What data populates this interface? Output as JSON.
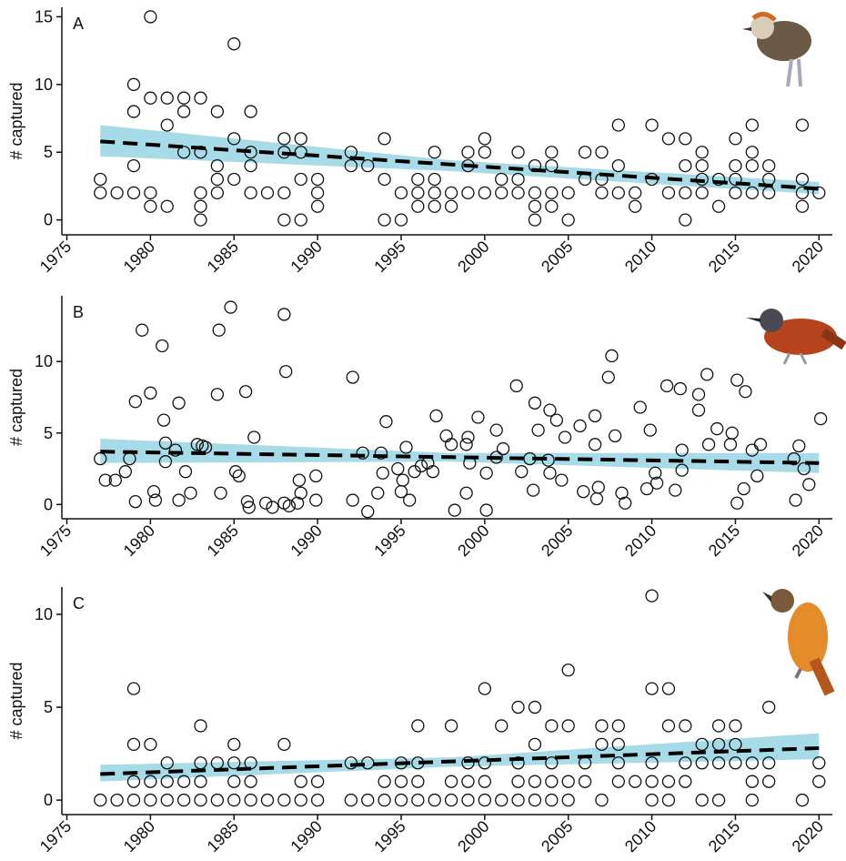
{
  "chart_data": [
    {
      "type": "scatter",
      "label": "A",
      "y_label": "# captured",
      "xlim": [
        1974.7,
        2020.8
      ],
      "ylim": [
        -1.1,
        15.7
      ],
      "xticks": [
        1975,
        1980,
        1985,
        1990,
        1995,
        2000,
        2005,
        2010,
        2015,
        2020
      ],
      "yticks": [
        0,
        5,
        10,
        15
      ],
      "x": [
        1977,
        1977,
        1978,
        1979,
        1979,
        1979,
        1979,
        1980,
        1980,
        1980,
        1980,
        1981,
        1981,
        1981,
        1982,
        1982,
        1982,
        1983,
        1983,
        1983,
        1983,
        1983,
        1984,
        1984,
        1984,
        1984,
        1985,
        1985,
        1985,
        1986,
        1986,
        1986,
        1986,
        1987,
        1988,
        1988,
        1988,
        1988,
        1989,
        1989,
        1989,
        1989,
        1990,
        1990,
        1990,
        1992,
        1992,
        1993,
        1994,
        1994,
        1994,
        1995,
        1995,
        1996,
        1996,
        1996,
        1997,
        1997,
        1997,
        1997,
        1998,
        1998,
        1999,
        1999,
        1999,
        2000,
        2000,
        2000,
        2001,
        2001,
        2002,
        2002,
        2002,
        2003,
        2003,
        2003,
        2003,
        2004,
        2004,
        2004,
        2004,
        2005,
        2005,
        2006,
        2006,
        2007,
        2007,
        2007,
        2008,
        2008,
        2008,
        2009,
        2009,
        2010,
        2010,
        2011,
        2011,
        2012,
        2012,
        2012,
        2012,
        2013,
        2013,
        2013,
        2013,
        2014,
        2014,
        2015,
        2015,
        2015,
        2015,
        2016,
        2016,
        2016,
        2016,
        2017,
        2017,
        2017,
        2019,
        2019,
        2019,
        2019,
        2020
      ],
      "y": [
        3,
        2,
        2,
        10,
        8,
        4,
        2,
        15,
        9,
        2,
        1,
        9,
        7,
        1,
        9,
        8,
        5,
        9,
        5,
        2,
        1,
        0,
        8,
        4,
        3,
        2,
        13,
        6,
        3,
        8,
        5,
        4,
        2,
        2,
        6,
        5,
        2,
        0,
        6,
        5,
        3,
        0,
        3,
        2,
        1,
        5,
        4,
        4,
        6,
        3,
        0,
        2,
        0,
        3,
        2,
        1,
        5,
        3,
        2,
        1,
        2,
        1,
        5,
        4,
        2,
        6,
        5,
        2,
        3,
        2,
        5,
        3,
        2,
        4,
        2,
        1,
        0,
        5,
        4,
        2,
        1,
        2,
        0,
        5,
        3,
        5,
        3,
        2,
        7,
        4,
        2,
        2,
        1,
        7,
        3,
        6,
        2,
        6,
        4,
        2,
        0,
        5,
        4,
        3,
        2,
        3,
        1,
        6,
        4,
        3,
        2,
        7,
        5,
        4,
        2,
        4,
        3,
        2,
        7,
        3,
        2,
        1,
        2
      ],
      "trend_x": [
        1977,
        1998,
        2020
      ],
      "trend_y": [
        5.8,
        4.09,
        2.3
      ],
      "band_lower": [
        4.7,
        3.6,
        1.9
      ],
      "band_upper": [
        7.0,
        4.4,
        2.8
      ],
      "band_color": "#a6dbe7",
      "line_color": "#000000"
    },
    {
      "type": "scatter",
      "label": "B",
      "y_label": "# captured",
      "xlim": [
        1974.7,
        2020.8
      ],
      "ylim": [
        -1.0,
        14.6
      ],
      "xticks": [
        1975,
        1980,
        1985,
        1990,
        1995,
        2000,
        2005,
        2010,
        2015,
        2020
      ],
      "yticks": [
        0,
        5,
        10
      ],
      "x": [
        1977.0,
        1977.3,
        1977.9,
        1978.5,
        1978.75,
        1979.1,
        1979.1,
        1979.5,
        1980.0,
        1980.2,
        1980.3,
        1980.7,
        1980.8,
        1980.9,
        1980.9,
        1981.5,
        1981.7,
        1981.7,
        1982.1,
        1982.4,
        1982.8,
        1983.1,
        1983.3,
        1984.0,
        1984.1,
        1984.2,
        1984.8,
        1985.1,
        1985.3,
        1985.7,
        1985.8,
        1985.9,
        1986.2,
        1986.9,
        1987.3,
        1988.0,
        1988.1,
        1988.0,
        1988.3,
        1988.8,
        1988.9,
        1989.0,
        1989.9,
        1989.9,
        1992.1,
        1992.1,
        1992.7,
        1993.0,
        1993.6,
        1993.8,
        1993.9,
        1994.1,
        1994.8,
        1995.0,
        1995.1,
        1995.3,
        1995.5,
        1995.8,
        1996.2,
        1996.6,
        1996.9,
        1997.1,
        1997.7,
        1998.0,
        1998.2,
        1998.9,
        1998.9,
        1999.0,
        1999.1,
        1999.6,
        2000.1,
        2000.1,
        2000.7,
        2000.7,
        2001.1,
        2001.9,
        2002.2,
        2002.7,
        2002.9,
        2003.0,
        2003.2,
        2003.9,
        2003.8,
        2003.9,
        2004.3,
        2004.6,
        2004.8,
        2005.7,
        2005.9,
        2006.6,
        2006.6,
        2006.7,
        2006.8,
        2007.4,
        2007.6,
        2007.8,
        2008.2,
        2008.4,
        2009.3,
        2009.7,
        2009.9,
        2010.2,
        2010.3,
        2010.9,
        2011.4,
        2011.7,
        2011.8,
        2011.8,
        2012.8,
        2012.8,
        2013.3,
        2013.4,
        2013.9,
        2014.7,
        2014.8,
        2015.1,
        2015.1,
        2015.5,
        2015.6,
        2016.0,
        2016.3,
        2016.5,
        2018.5,
        2018.6,
        2018.8,
        2019.1,
        2019.4,
        2020.1
      ],
      "y": [
        3.2,
        1.7,
        1.7,
        2.3,
        3.2,
        0.2,
        7.2,
        12.2,
        7.8,
        0.9,
        0.3,
        11.1,
        5.9,
        4.3,
        3.0,
        3.8,
        0.3,
        7.1,
        2.3,
        0.8,
        4.2,
        4.1,
        4.0,
        7.7,
        12.2,
        0.8,
        13.8,
        2.3,
        2.0,
        7.9,
        0.2,
        -0.2,
        4.7,
        0.1,
        -0.2,
        13.3,
        9.3,
        0.1,
        -0.1,
        0.1,
        1.7,
        0.8,
        0.3,
        2.0,
        8.9,
        0.3,
        3.6,
        -0.5,
        0.8,
        3.6,
        2.2,
        5.8,
        2.5,
        0.9,
        1.7,
        4.0,
        0.3,
        2.3,
        2.7,
        2.9,
        2.3,
        6.2,
        4.8,
        4.2,
        -0.4,
        4.2,
        0.8,
        4.7,
        2.9,
        6.1,
        2.2,
        -0.4,
        3.3,
        5.2,
        3.9,
        8.3,
        2.3,
        3.2,
        1.0,
        7.1,
        5.2,
        6.6,
        3.1,
        2.2,
        5.9,
        1.7,
        4.7,
        5.5,
        0.9,
        4.2,
        6.2,
        0.4,
        1.2,
        8.9,
        10.4,
        4.8,
        0.8,
        0.1,
        6.8,
        1.1,
        5.2,
        2.2,
        1.5,
        8.3,
        1.0,
        8.1,
        2.4,
        3.8,
        7.7,
        6.6,
        9.1,
        4.2,
        5.3,
        4.2,
        5.0,
        8.7,
        0.1,
        1.1,
        7.9,
        3.8,
        2.0,
        4.2,
        3.2,
        0.3,
        4.1,
        2.5,
        1.4,
        6.0
      ],
      "trend_x": [
        1977,
        1998,
        2020
      ],
      "trend_y": [
        3.7,
        3.31,
        2.9
      ],
      "band_lower": [
        2.9,
        3.0,
        2.2
      ],
      "band_upper": [
        4.6,
        3.6,
        3.6
      ],
      "band_color": "#a6dbe7",
      "line_color": "#000000"
    },
    {
      "type": "scatter",
      "label": "C",
      "y_label": "# captured",
      "xlim": [
        1974.7,
        2020.8
      ],
      "ylim": [
        -0.78,
        11.47
      ],
      "xticks": [
        1975,
        1980,
        1985,
        1990,
        1995,
        2000,
        2005,
        2010,
        2015,
        2020
      ],
      "yticks": [
        0,
        5,
        10
      ],
      "x": [
        1977,
        1978,
        1979,
        1979,
        1979,
        1979,
        1980,
        1980,
        1980,
        1981,
        1981,
        1981,
        1982,
        1982,
        1983,
        1983,
        1983,
        1983,
        1984,
        1984,
        1985,
        1985,
        1985,
        1985,
        1986,
        1986,
        1986,
        1987,
        1988,
        1988,
        1989,
        1989,
        1990,
        1990,
        1992,
        1992,
        1993,
        1993,
        1994,
        1994,
        1995,
        1995,
        1995,
        1996,
        1996,
        1996,
        1996,
        1997,
        1998,
        1998,
        1998,
        1999,
        1999,
        1999,
        2000,
        2000,
        2000,
        2000,
        2001,
        2001,
        2002,
        2002,
        2002,
        2002,
        2003,
        2003,
        2003,
        2003,
        2004,
        2004,
        2004,
        2004,
        2005,
        2005,
        2005,
        2005,
        2006,
        2006,
        2007,
        2007,
        2007,
        2008,
        2008,
        2008,
        2008,
        2009,
        2010,
        2010,
        2010,
        2010,
        2010,
        2011,
        2011,
        2011,
        2011,
        2012,
        2012,
        2012,
        2013,
        2013,
        2013,
        2014,
        2014,
        2014,
        2014,
        2015,
        2015,
        2015,
        2016,
        2016,
        2016,
        2017,
        2017,
        2017,
        2019,
        2020,
        2020
      ],
      "y": [
        0,
        0,
        6,
        3,
        1,
        0,
        3,
        1,
        0,
        2,
        1,
        0,
        1,
        0,
        4,
        2,
        1,
        0,
        2,
        0,
        3,
        2,
        1,
        0,
        2,
        1,
        0,
        0,
        3,
        0,
        1,
        0,
        1,
        0,
        2,
        0,
        2,
        0,
        1,
        0,
        2,
        1,
        0,
        4,
        2,
        1,
        0,
        0,
        4,
        1,
        0,
        2,
        1,
        0,
        6,
        2,
        1,
        0,
        4,
        0,
        5,
        2,
        1,
        0,
        5,
        3,
        1,
        0,
        4,
        2,
        1,
        0,
        7,
        4,
        1,
        0,
        2,
        1,
        4,
        3,
        0,
        4,
        3,
        2,
        1,
        1,
        11,
        6,
        2,
        1,
        0,
        6,
        4,
        1,
        0,
        4,
        2,
        1,
        3,
        2,
        0,
        4,
        3,
        2,
        0,
        4,
        3,
        2,
        2,
        1,
        0,
        5,
        2,
        1,
        0,
        2,
        1
      ],
      "trend_x": [
        1977,
        1998,
        2020
      ],
      "trend_y": [
        1.4,
        2.08,
        2.8
      ],
      "band_lower": [
        1.0,
        1.8,
        2.2
      ],
      "band_upper": [
        1.9,
        2.3,
        3.6
      ],
      "band_color": "#a6dbe7",
      "line_color": "#000000"
    }
  ]
}
